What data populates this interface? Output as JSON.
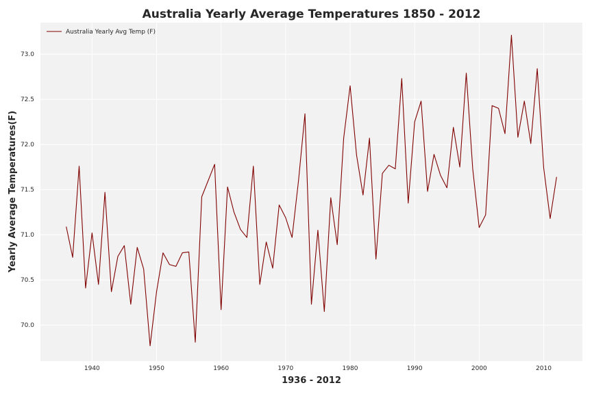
{
  "chart_data": {
    "type": "line",
    "title": "Australia Yearly Average Temperatures 1850 - 2012",
    "xlabel": "1936 - 2012",
    "ylabel": "Yearly Average Temperatures(F)",
    "xlim": [
      1932,
      2016
    ],
    "ylim": [
      69.6,
      73.35
    ],
    "x_ticks": [
      1940,
      1950,
      1960,
      1970,
      1980,
      1990,
      2000,
      2010
    ],
    "y_ticks": [
      70.0,
      70.5,
      71.0,
      71.5,
      72.0,
      72.5,
      73.0
    ],
    "y_tick_labels": [
      "70.0",
      "70.5",
      "71.0",
      "71.5",
      "72.0",
      "72.5",
      "73.0"
    ],
    "grid": true,
    "legend_position": "top-left",
    "series": [
      {
        "name": "Australia Yearly Avg Temp (F)",
        "color": "#800000",
        "x": [
          1936,
          1937,
          1938,
          1939,
          1940,
          1941,
          1942,
          1943,
          1944,
          1945,
          1946,
          1947,
          1948,
          1949,
          1950,
          1951,
          1952,
          1953,
          1954,
          1955,
          1956,
          1957,
          1958,
          1959,
          1960,
          1961,
          1962,
          1963,
          1964,
          1965,
          1966,
          1967,
          1968,
          1969,
          1970,
          1971,
          1972,
          1973,
          1974,
          1975,
          1976,
          1977,
          1978,
          1979,
          1980,
          1981,
          1982,
          1983,
          1984,
          1985,
          1986,
          1987,
          1988,
          1989,
          1990,
          1991,
          1992,
          1993,
          1994,
          1995,
          1996,
          1997,
          1998,
          1999,
          2000,
          2001,
          2002,
          2003,
          2004,
          2005,
          2006,
          2007,
          2008,
          2009,
          2010,
          2011,
          2012
        ],
        "values": [
          71.09,
          70.75,
          71.76,
          70.41,
          71.02,
          70.45,
          71.47,
          70.37,
          70.76,
          70.88,
          70.23,
          70.86,
          70.62,
          69.77,
          70.37,
          70.8,
          70.67,
          70.65,
          70.8,
          70.81,
          69.81,
          71.42,
          71.6,
          71.78,
          70.17,
          71.53,
          71.25,
          71.06,
          70.97,
          71.76,
          70.45,
          70.92,
          70.63,
          71.33,
          71.19,
          70.97,
          71.6,
          72.34,
          70.23,
          71.05,
          70.15,
          71.41,
          70.89,
          72.07,
          72.65,
          71.88,
          71.44,
          72.07,
          70.73,
          71.68,
          71.77,
          71.73,
          72.73,
          71.35,
          72.25,
          72.48,
          71.48,
          71.89,
          71.66,
          71.52,
          72.19,
          71.75,
          72.79,
          71.73,
          71.08,
          71.22,
          72.43,
          72.4,
          72.12,
          73.21,
          72.08,
          72.48,
          72.01,
          72.84,
          71.74,
          71.18,
          71.64
        ]
      }
    ]
  }
}
